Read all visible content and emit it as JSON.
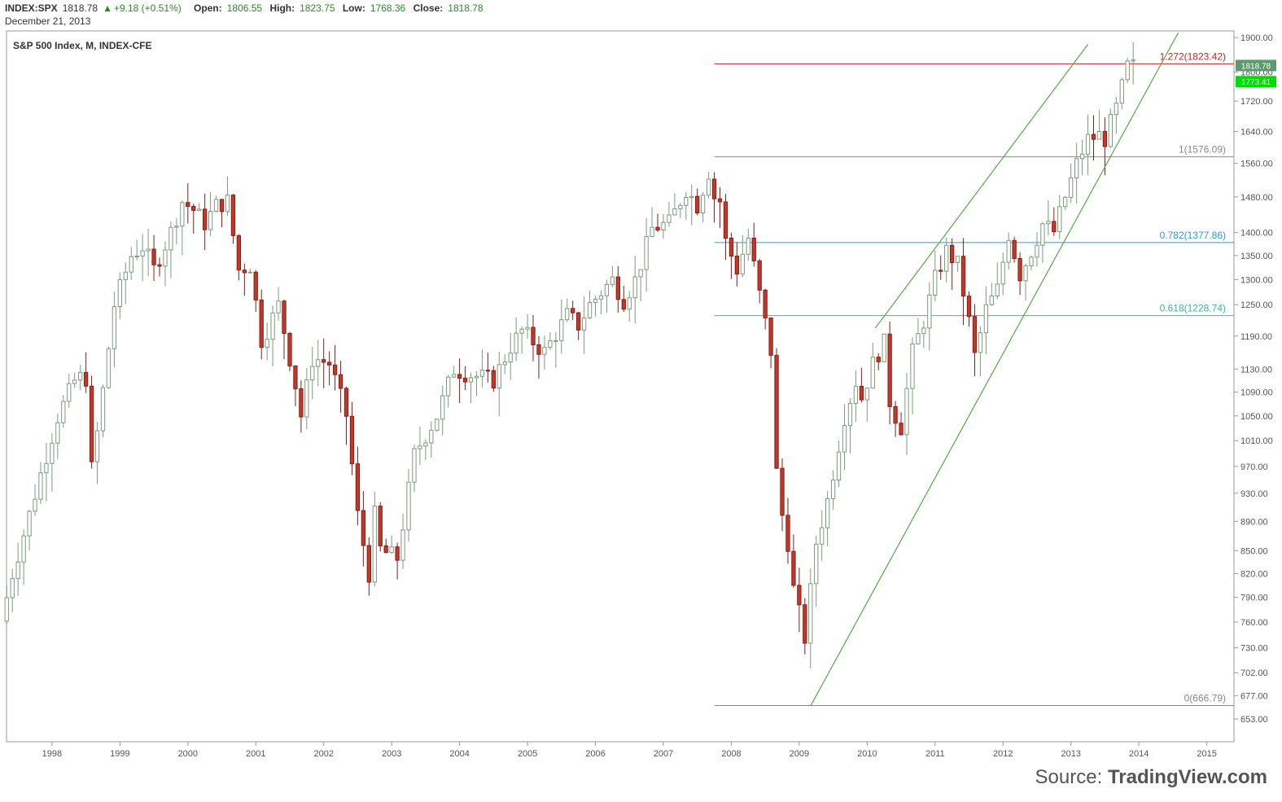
{
  "header": {
    "symbol": "INDEX:SPX",
    "last": "1818.78",
    "change": "+9.18 (+0.51%)",
    "open_label": "Open:",
    "open": "1806.55",
    "high_label": "High:",
    "high": "1823.75",
    "low_label": "Low:",
    "low": "1768.36",
    "close_label": "Close:",
    "close": "1818.78",
    "date": "December 21, 2013"
  },
  "legend_title": "S&P 500 Index, M, INDEX-CFE",
  "source": {
    "prefix": "Source:",
    "brand": "TradingView.com"
  },
  "colors": {
    "up_fill": "#ffffff",
    "up_border": "#7a9c7a",
    "down_fill": "#c0392b",
    "down_border": "#8a1c12",
    "fib_top": "#cc2222",
    "fib_1": "#888888",
    "fib_0782": "#3399cc",
    "fib_0618": "#33bb99",
    "fib_0": "#888888",
    "channel": "#55aa44",
    "badge_last": "#5c9a6e",
    "badge_ma": "#00dd00"
  },
  "chart_data": {
    "type": "candlestick",
    "title": "S&P 500 Index, M, INDEX-CFE",
    "xlabel": "",
    "ylabel": "",
    "scale": "log",
    "ylim": [
      630,
      1920
    ],
    "xlim": [
      1997.33,
      2015.4
    ],
    "x_ticks": [
      "1998",
      "1999",
      "2000",
      "2001",
      "2002",
      "2003",
      "2004",
      "2005",
      "2006",
      "2007",
      "2008",
      "2009",
      "2010",
      "2011",
      "2012",
      "2013",
      "2014",
      "2015"
    ],
    "y_ticks": [
      "1900.00",
      "1800.00",
      "1720.00",
      "1640.00",
      "1560.00",
      "1480.00",
      "1400.00",
      "1350.00",
      "1300.00",
      "1250.00",
      "1190.00",
      "1130.00",
      "1090.00",
      "1050.00",
      "1010.00",
      "970.00",
      "930.00",
      "890.00",
      "850.00",
      "820.00",
      "790.00",
      "760.00",
      "730.00",
      "702.00",
      "677.00",
      "653.00"
    ],
    "fib_levels": [
      {
        "label": "1.272(1823.42)",
        "value": 1823.42,
        "color_key": "fib_top"
      },
      {
        "label": "1(1576.09)",
        "value": 1576.09,
        "color_key": "fib_1"
      },
      {
        "label": "0.782(1377.86)",
        "value": 1377.86,
        "color_key": "fib_0782"
      },
      {
        "label": "0.618(1228.74)",
        "value": 1228.74,
        "color_key": "fib_0618"
      },
      {
        "label": "0(666.79)",
        "value": 666.79,
        "color_key": "fib_0"
      }
    ],
    "fib_start_x": 2007.75,
    "channels": [
      {
        "p1": [
          2010.12,
          1205
        ],
        "p2": [
          2013.25,
          1880
        ]
      },
      {
        "p1": [
          2009.17,
          666.79
        ],
        "p2": [
          2014.58,
          1915
        ]
      }
    ],
    "badges": [
      {
        "label": "1818.78",
        "value": 1818.78,
        "color_key": "badge_last"
      },
      {
        "label": "1773.41",
        "value": 1773.41,
        "color_key": "badge_ma"
      }
    ],
    "anchors": [
      [
        1997.33,
        760
      ],
      [
        1997.5,
        820
      ],
      [
        1997.75,
        900
      ],
      [
        1997.92,
        960
      ],
      [
        1998.17,
        1050
      ],
      [
        1998.42,
        1110
      ],
      [
        1998.58,
        1120
      ],
      [
        1998.67,
        960
      ],
      [
        1998.83,
        1090
      ],
      [
        1999.0,
        1250
      ],
      [
        1999.25,
        1350
      ],
      [
        1999.42,
        1370
      ],
      [
        1999.58,
        1320
      ],
      [
        1999.83,
        1400
      ],
      [
        2000.0,
        1470
      ],
      [
        2000.17,
        1450
      ],
      [
        2000.33,
        1420
      ],
      [
        2000.5,
        1460
      ],
      [
        2000.67,
        1470
      ],
      [
        2000.83,
        1320
      ],
      [
        2001.0,
        1330
      ],
      [
        2001.17,
        1180
      ],
      [
        2001.42,
        1250
      ],
      [
        2001.67,
        1100
      ],
      [
        2001.75,
        1050
      ],
      [
        2001.92,
        1150
      ],
      [
        2002.17,
        1140
      ],
      [
        2002.42,
        1050
      ],
      [
        2002.58,
        900
      ],
      [
        2002.75,
        820
      ],
      [
        2002.83,
        900
      ],
      [
        2002.92,
        850
      ],
      [
        2003.17,
        840
      ],
      [
        2003.42,
        990
      ],
      [
        2003.75,
        1050
      ],
      [
        2004.0,
        1130
      ],
      [
        2004.25,
        1120
      ],
      [
        2004.58,
        1110
      ],
      [
        2004.83,
        1170
      ],
      [
        2005.0,
        1200
      ],
      [
        2005.33,
        1160
      ],
      [
        2005.67,
        1230
      ],
      [
        2005.83,
        1210
      ],
      [
        2006.0,
        1250
      ],
      [
        2006.33,
        1300
      ],
      [
        2006.5,
        1260
      ],
      [
        2006.67,
        1300
      ],
      [
        2006.92,
        1410
      ],
      [
        2007.17,
        1420
      ],
      [
        2007.42,
        1500
      ],
      [
        2007.58,
        1460
      ],
      [
        2007.75,
        1540
      ],
      [
        2007.83,
        1480
      ],
      [
        2007.92,
        1470
      ],
      [
        2008.0,
        1380
      ],
      [
        2008.17,
        1320
      ],
      [
        2008.33,
        1390
      ],
      [
        2008.5,
        1270
      ],
      [
        2008.67,
        1160
      ],
      [
        2008.75,
        960
      ],
      [
        2008.83,
        900
      ],
      [
        2008.92,
        860
      ],
      [
        2009.0,
        800
      ],
      [
        2009.17,
        740
      ],
      [
        2009.33,
        860
      ],
      [
        2009.5,
        920
      ],
      [
        2009.75,
        1050
      ],
      [
        2009.92,
        1110
      ],
      [
        2010.0,
        1080
      ],
      [
        2010.17,
        1140
      ],
      [
        2010.33,
        1180
      ],
      [
        2010.42,
        1070
      ],
      [
        2010.5,
        1050
      ],
      [
        2010.58,
        1030
      ],
      [
        2010.75,
        1160
      ],
      [
        2010.92,
        1220
      ],
      [
        2011.08,
        1300
      ],
      [
        2011.25,
        1360
      ],
      [
        2011.42,
        1330
      ],
      [
        2011.58,
        1220
      ],
      [
        2011.67,
        1150
      ],
      [
        2011.83,
        1240
      ],
      [
        2012.0,
        1280
      ],
      [
        2012.17,
        1400
      ],
      [
        2012.33,
        1310
      ],
      [
        2012.5,
        1360
      ],
      [
        2012.67,
        1420
      ],
      [
        2012.83,
        1400
      ],
      [
        2013.0,
        1480
      ],
      [
        2013.17,
        1560
      ],
      [
        2013.33,
        1620
      ],
      [
        2013.5,
        1630
      ],
      [
        2013.58,
        1620
      ],
      [
        2013.75,
        1700
      ],
      [
        2013.92,
        1818
      ]
    ]
  }
}
